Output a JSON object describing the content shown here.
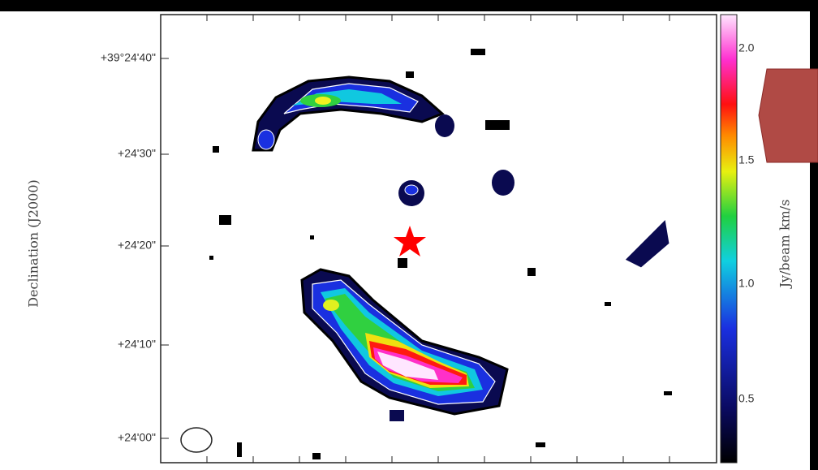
{
  "y_axis": {
    "label": "Declination (J2000)",
    "ticks": [
      "+39°24'40\"",
      "+24'30\"",
      "+24'20\"",
      "+24'10\"",
      "+24'00\""
    ]
  },
  "colorbar": {
    "label": "Jy/beam km/s",
    "ticks": [
      "2.0",
      "1.5",
      "1.0",
      "0.5"
    ]
  }
}
